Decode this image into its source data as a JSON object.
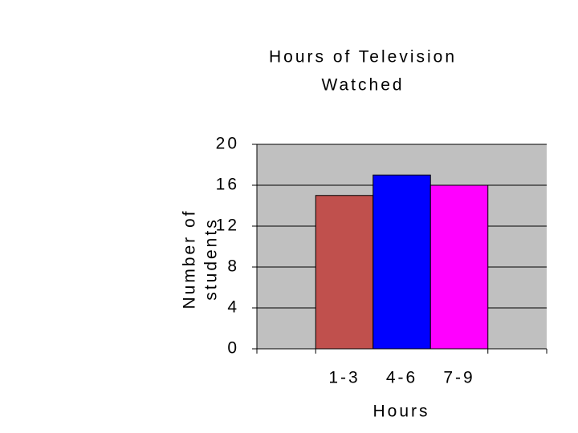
{
  "chart_data": {
    "type": "bar",
    "title": [
      "Hours of Television",
      "Watched"
    ],
    "ylabel": [
      "Number of",
      "students"
    ],
    "xlabel": "Hours",
    "categories": [
      "1-3",
      "4-6",
      "7-9"
    ],
    "values": [
      15,
      17,
      16
    ],
    "colors": [
      "#c0504d",
      "#0000ff",
      "#ff00ff"
    ],
    "ylim": [
      0,
      20
    ],
    "yticks": [
      0,
      4,
      8,
      12,
      16,
      20
    ],
    "grid": true
  }
}
